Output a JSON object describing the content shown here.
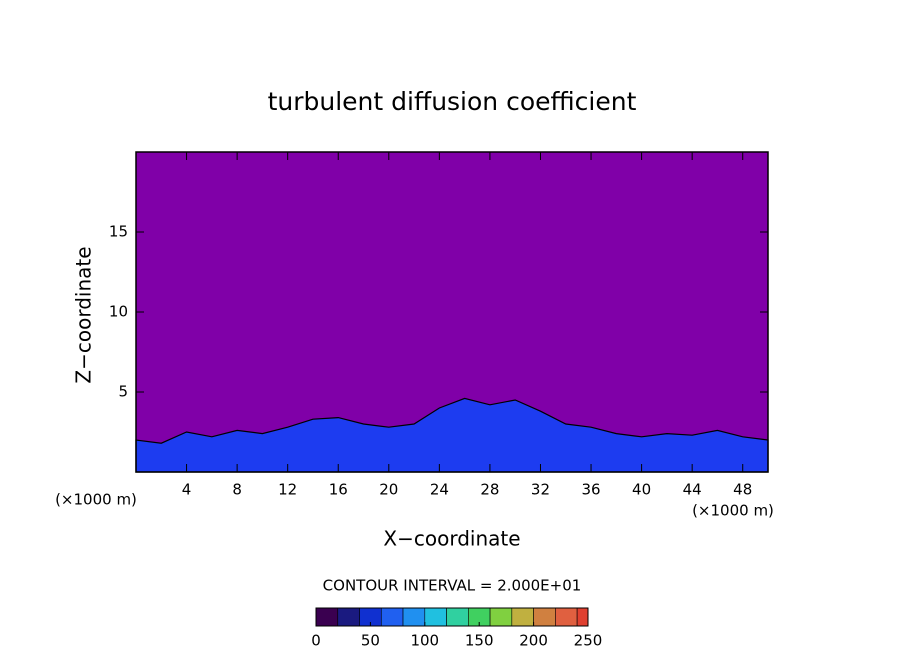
{
  "chart_data": {
    "type": "contour",
    "title": "turbulent diffusion coefficient",
    "x_label": "X−coordinate",
    "y_label": "Z−coordinate",
    "x_unit": "(×1000 m)",
    "y_unit": "(×1000 m)",
    "xlim": [
      0,
      50
    ],
    "ylim": [
      0,
      20
    ],
    "xticks": [
      4,
      8,
      12,
      16,
      20,
      24,
      28,
      32,
      36,
      40,
      44,
      48
    ],
    "yticks": [
      5,
      10,
      15
    ],
    "background_color": "#8000a8",
    "color": "#1d3cf0",
    "x": [
      0,
      2,
      4,
      6,
      8,
      10,
      12,
      14,
      16,
      18,
      20,
      22,
      24,
      26,
      28,
      30,
      32,
      34,
      36,
      38,
      40,
      42,
      44,
      46,
      48,
      50
    ],
    "values": [
      2.0,
      1.8,
      2.5,
      2.2,
      2.6,
      2.4,
      2.8,
      3.3,
      3.4,
      3.0,
      2.8,
      3.0,
      4.0,
      4.6,
      4.2,
      4.5,
      3.8,
      3.0,
      2.8,
      2.4,
      2.2,
      2.4,
      2.3,
      2.6,
      2.2,
      2.0
    ],
    "contour_label": "CONTOUR INTERVAL = 2.000E+01",
    "contour_interval": 20,
    "colorbar": {
      "lim": [
        0,
        250
      ],
      "ticks": [
        0,
        50,
        100,
        150,
        200,
        250
      ],
      "colors": [
        "#3a0050",
        "#1a1a80",
        "#1030d0",
        "#2060f0",
        "#2090f0",
        "#20c0e0",
        "#30d0a0",
        "#40d060",
        "#80d040",
        "#c0b040",
        "#d08040",
        "#e06040",
        "#e04030"
      ]
    }
  }
}
